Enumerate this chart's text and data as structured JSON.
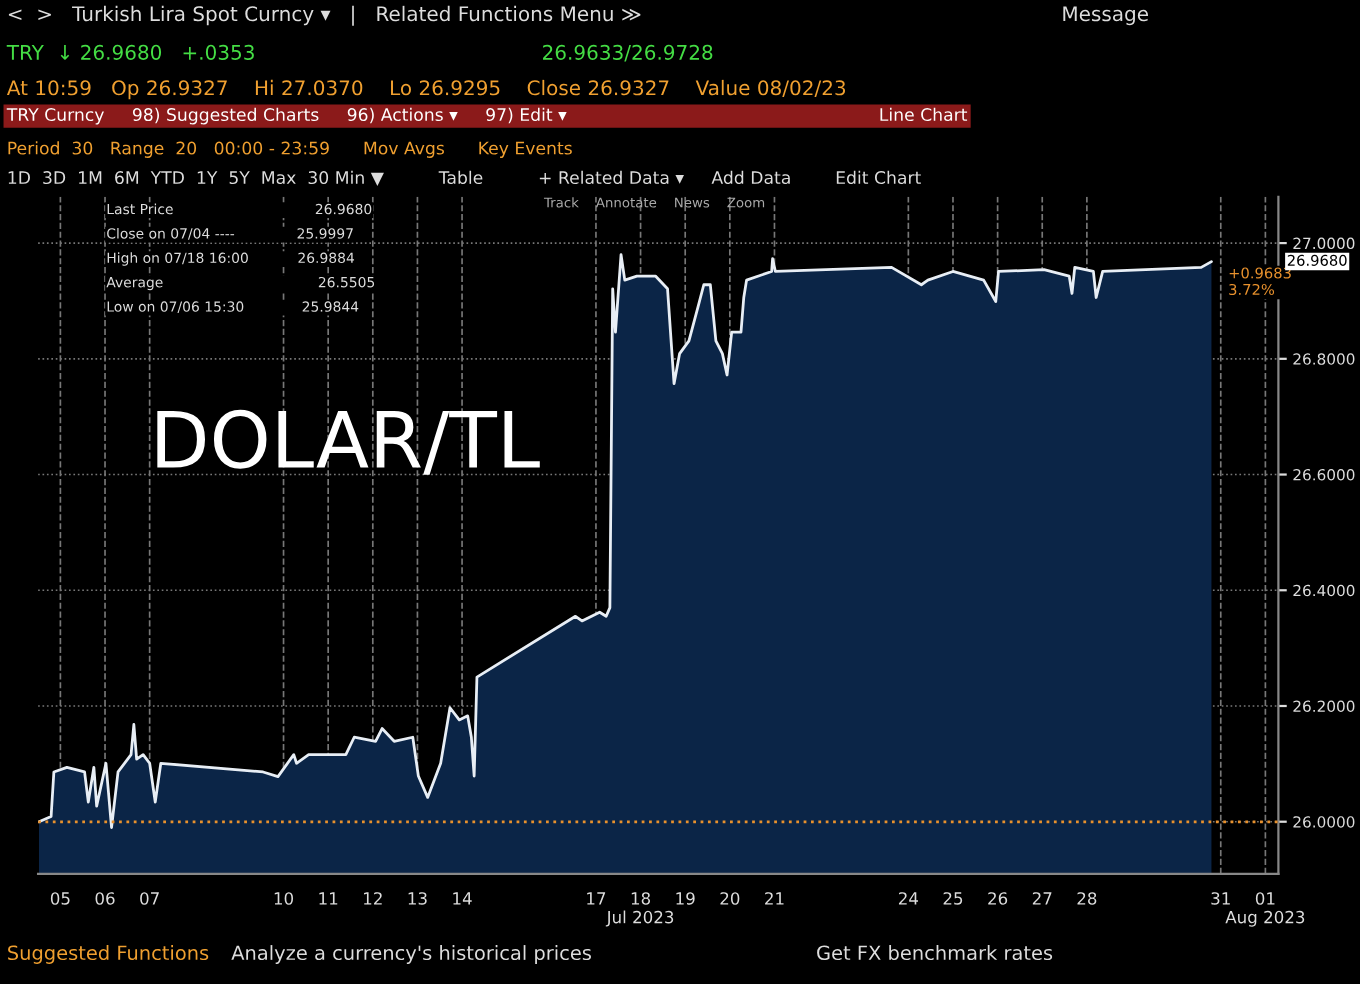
{
  "chart_data": {
    "type": "area",
    "title": "DOLAR/TL",
    "annotations": [
      "<  >   Turkish Lira Spot Curncy ▾   |   Related Functions Menu ≫                                                                  Message",
      "TRY  ↓ 26.9680   +.0353                                             26.9633/26.9728",
      "At 10:59   Op 26.9327    Hi 27.0370    Lo 26.9295    Close 26.9327    Value 08/02/23",
      "TRY Curncy     98) Suggested Charts     96) Actions ▾     97) Edit ▾                                                         Line Chart",
      "Period  30   Range  20   00:00 - 23:59      Mov Avgs      Key Events",
      "1D  3D  1M  6M  YTD  1Y  5Y  Max  30 Min ▼          Table          + Related Data ▾     Add Data        Edit Chart",
      "Track    Annotate    News    Zoom",
      "Last Price                                26.9680",
      "Close on 07/04 ----              25.9997",
      "High on 07/18 16:00           26.9884",
      "Average                                   26.5505",
      "Low on 07/06 15:30             25.9844",
      "26.9680",
      {
        "text": "+0.9683\n3.72%",
        "x": "2023-07-31T07:00",
        "y": 26.968
      },
      "Suggested Functions",
      "Analyze a currency's historical prices",
      "Get FX benchmark rates"
    ],
    "series": [
      {
        "color": "#0b2547",
        "x": [
          "2023-07-05T00:30",
          "2023-07-05T07:00",
          "2023-07-05T08:30",
          "2023-07-05T15:30",
          "2023-07-06T01:00",
          "2023-07-06T03:00",
          "2023-07-06T06:00",
          "2023-07-06T07:30",
          "2023-07-06T12:30",
          "2023-07-06T15:30",
          "2023-07-06T19:00",
          "2023-07-07T02:00",
          "2023-07-07T03:30",
          "2023-07-07T05:00",
          "2023-07-07T08:30",
          "2023-07-07T12:00",
          "2023-07-07T15:00",
          "2023-07-07T18:00",
          "2023-07-10T01:00",
          "2023-07-10T09:00",
          "2023-07-10T17:30",
          "2023-07-10T19:00",
          "2023-07-11T01:30",
          "2023-07-11T21:30",
          "2023-07-12T02:00",
          "2023-07-12T13:30",
          "2023-07-12T17:00",
          "2023-07-12T23:30",
          "2023-07-13T09:30",
          "2023-07-13T12:30",
          "2023-07-13T17:30",
          "2023-07-14T00:30",
          "2023-07-14T05:30",
          "2023-07-14T10:30",
          "2023-07-14T15:00",
          "2023-07-14T17:00",
          "2023-07-14T18:30",
          "2023-07-14T20:00",
          "2023-07-17T01:00",
          "2023-07-17T04:30",
          "2023-07-17T14:00",
          "2023-07-17T17:30",
          "2023-07-17T19:30",
          "2023-07-17T21:00",
          "2023-07-17T22:30",
          "2023-07-18T01:30",
          "2023-07-18T03:30",
          "2023-07-18T10:00",
          "2023-07-18T20:00",
          "2023-07-19T02:30",
          "2023-07-19T06:00",
          "2023-07-19T09:00",
          "2023-07-19T14:00",
          "2023-07-19T19:00",
          "2023-07-19T22:00",
          "2023-07-20T01:30",
          "2023-07-20T04:30",
          "2023-07-20T08:00",
          "2023-07-20T10:30",
          "2023-07-20T13:00",
          "2023-07-20T18:00",
          "2023-07-20T19:30",
          "2023-07-20T21:00",
          "2023-07-21T10:30",
          "2023-07-21T11:00",
          "2023-07-21T12:30",
          "2023-07-24T03:00",
          "2023-07-24T19:00",
          "2023-07-24T22:30",
          "2023-07-25T12:00",
          "2023-07-26T04:30",
          "2023-07-26T11:00",
          "2023-07-26T12:30",
          "2023-07-27T13:00",
          "2023-07-28T02:30",
          "2023-07-28T04:00",
          "2023-07-28T05:30",
          "2023-07-28T15:30",
          "2023-07-28T17:00",
          "2023-07-28T20:30",
          "2023-07-31T01:30",
          "2023-07-31T07:00"
        ],
        "values": [
          26.0,
          26.009,
          26.086,
          26.094,
          26.086,
          26.034,
          26.094,
          26.027,
          26.101,
          25.99,
          26.086,
          26.116,
          26.168,
          26.108,
          26.116,
          26.101,
          26.034,
          26.101,
          26.086,
          26.078,
          26.116,
          26.101,
          26.116,
          26.116,
          26.146,
          26.139,
          26.161,
          26.139,
          26.146,
          26.079,
          26.042,
          26.101,
          26.197,
          26.176,
          26.183,
          26.146,
          26.079,
          26.25,
          26.355,
          26.347,
          26.362,
          26.355,
          26.37,
          26.921,
          26.846,
          26.98,
          26.936,
          26.943,
          26.943,
          26.921,
          26.757,
          26.809,
          26.831,
          26.891,
          26.928,
          26.928,
          26.831,
          26.809,
          26.772,
          26.846,
          26.846,
          26.906,
          26.936,
          26.951,
          26.973,
          26.951,
          26.958,
          26.928,
          26.936,
          26.951,
          26.936,
          26.899,
          26.951,
          26.954,
          26.943,
          26.913,
          26.958,
          26.951,
          26.906,
          26.951,
          26.958,
          26.968
        ]
      }
    ],
    "xlim": [
      "2023-07-05T00:00",
      "2023-08-01T19:00"
    ],
    "xticks": [
      {
        "value": "2023-07-05T12:00",
        "label": "05"
      },
      {
        "value": "2023-07-06T12:00",
        "label": "06"
      },
      {
        "value": "2023-07-07T12:00",
        "label": "07"
      },
      {
        "value": "2023-07-10T12:00",
        "label": "10"
      },
      {
        "value": "2023-07-11T12:00",
        "label": "11"
      },
      {
        "value": "2023-07-12T12:00",
        "label": "12"
      },
      {
        "value": "2023-07-13T12:00",
        "label": "13"
      },
      {
        "value": "2023-07-14T12:00",
        "label": "14"
      },
      {
        "value": "2023-07-17T12:00",
        "label": "17"
      },
      {
        "value": "2023-07-18T12:00",
        "label": "18\nJul 2023"
      },
      {
        "value": "2023-07-19T12:00",
        "label": "19"
      },
      {
        "value": "2023-07-20T12:00",
        "label": "20"
      },
      {
        "value": "2023-07-21T12:00",
        "label": "21"
      },
      {
        "value": "2023-07-24T12:00",
        "label": "24"
      },
      {
        "value": "2023-07-25T12:00",
        "label": "25"
      },
      {
        "value": "2023-07-26T12:00",
        "label": "26"
      },
      {
        "value": "2023-07-27T12:00",
        "label": "27"
      },
      {
        "value": "2023-07-28T12:00",
        "label": "28"
      },
      {
        "value": "2023-07-31T12:00",
        "label": "31"
      },
      {
        "value": "2023-08-01T12:00",
        "label": "01\nAug 2023"
      }
    ],
    "ylim": [
      25.91,
      27.08
    ],
    "yticks": [
      {
        "value": 26.0,
        "label": "26.0000"
      },
      {
        "value": 26.2,
        "label": "26.2000"
      },
      {
        "value": 26.4,
        "label": "26.4000"
      },
      {
        "value": 26.6,
        "label": "26.6000"
      },
      {
        "value": 26.8,
        "label": "26.8000"
      },
      {
        "value": 27.0,
        "label": "27.0000"
      }
    ],
    "ref_lines": [
      {
        "axis": "y",
        "value": 25.9997,
        "color": "#e8912d",
        "line_style": "dotted"
      }
    ],
    "grid": true
  }
}
